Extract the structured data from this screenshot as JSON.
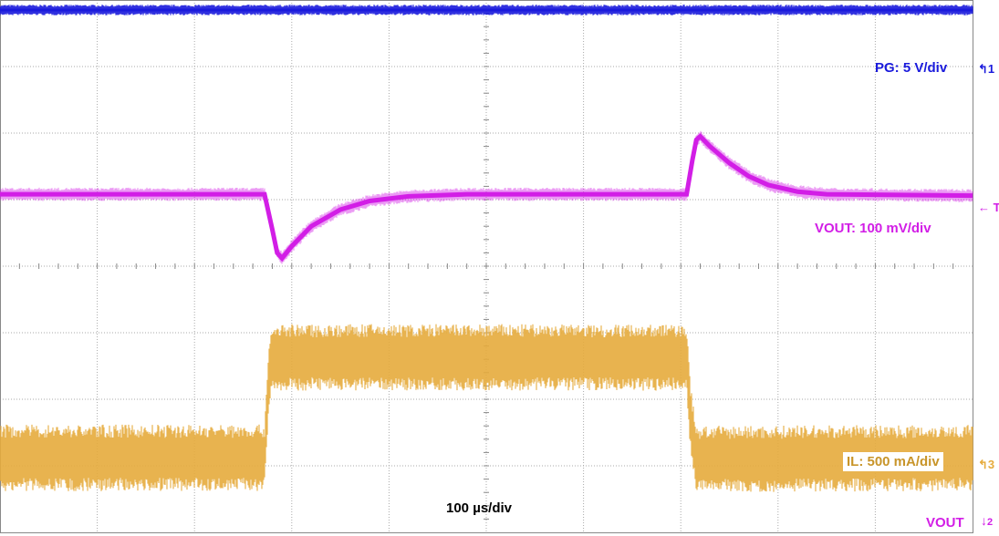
{
  "chart_data": {
    "type": "line",
    "title": "",
    "timebase_label": "100 µs/div",
    "x_divisions": 10,
    "y_divisions": 8,
    "xlim_us": [
      0,
      1000
    ],
    "ylim_div": [
      -4,
      4
    ],
    "grid": true,
    "series": [
      {
        "name": "PG: 5 V/div",
        "marker_label": "1",
        "color": "#1a1adc",
        "noise_div": 0.08,
        "points": [
          [
            0,
            3.85
          ],
          [
            1000,
            3.85
          ]
        ]
      },
      {
        "name": "VOUT: 100 mV/div",
        "marker_label": "T",
        "color": "#d21ee6",
        "noise_div": 0.1,
        "points": [
          [
            0,
            1.08
          ],
          [
            272,
            1.08
          ],
          [
            280,
            0.55
          ],
          [
            285,
            0.2
          ],
          [
            290,
            0.12
          ],
          [
            300,
            0.3
          ],
          [
            320,
            0.6
          ],
          [
            350,
            0.85
          ],
          [
            380,
            0.98
          ],
          [
            420,
            1.05
          ],
          [
            480,
            1.08
          ],
          [
            706,
            1.08
          ],
          [
            712,
            1.6
          ],
          [
            716,
            1.9
          ],
          [
            720,
            1.95
          ],
          [
            730,
            1.8
          ],
          [
            750,
            1.55
          ],
          [
            770,
            1.35
          ],
          [
            790,
            1.22
          ],
          [
            820,
            1.12
          ],
          [
            850,
            1.08
          ],
          [
            1000,
            1.06
          ]
        ]
      },
      {
        "name": "IL: 500 mA/div",
        "marker_label": "3",
        "color": "#e6ab3c",
        "noise_div": 0.5,
        "points": [
          [
            0,
            -2.88
          ],
          [
            272,
            -2.88
          ],
          [
            276,
            -1.75
          ],
          [
            280,
            -1.37
          ],
          [
            706,
            -1.37
          ],
          [
            710,
            -2.3
          ],
          [
            716,
            -2.9
          ],
          [
            1000,
            -2.88
          ]
        ]
      }
    ],
    "bottom_marker": {
      "label": "VOUT",
      "channel": "2",
      "color": "#d21ee6"
    }
  }
}
